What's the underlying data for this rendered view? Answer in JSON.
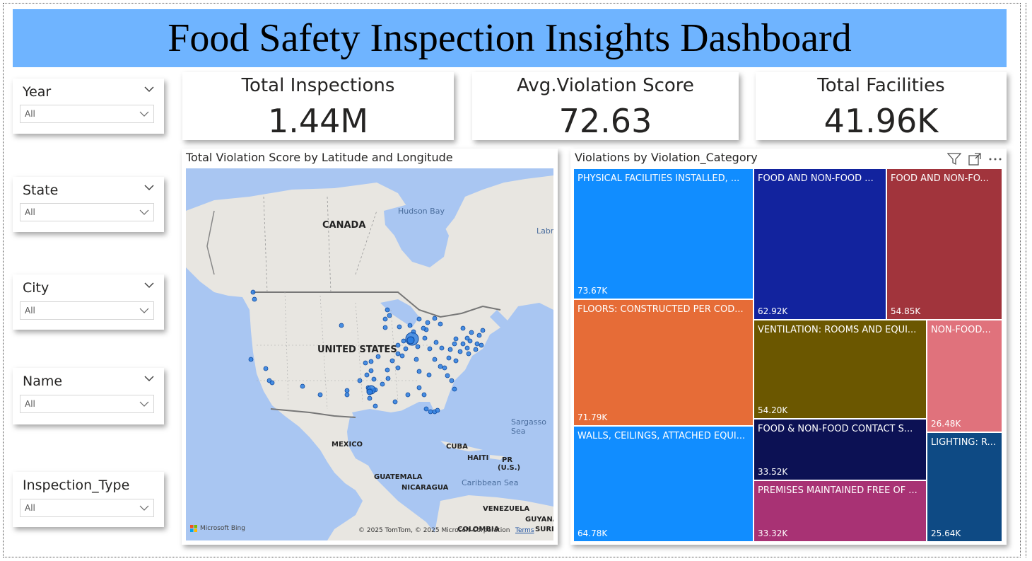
{
  "title": "Food Safety Inspection Insights Dashboard",
  "slicers": [
    {
      "label": "Year",
      "value": "All"
    },
    {
      "label": "State",
      "value": "All"
    },
    {
      "label": "City",
      "value": "All"
    },
    {
      "label": "Name",
      "value": "All"
    },
    {
      "label": "Inspection_Type",
      "value": "All"
    }
  ],
  "kpis": [
    {
      "label": "Total Inspections",
      "value": "1.44M"
    },
    {
      "label": "Avg.Violation Score",
      "value": "72.63"
    },
    {
      "label": "Total Facilities",
      "value": "41.96K"
    }
  ],
  "map": {
    "title": "Total Violation Score by Latitude and Longitude",
    "labels": {
      "canada": "CANADA",
      "us": "UNITED STATES",
      "mexico": "MEXICO",
      "cuba": "CUBA",
      "haiti": "HAITI",
      "pr": "PR",
      "pr2": "(U.S.)",
      "guatemala": "GUATEMALA",
      "nicaragua": "NICARAGUA",
      "venezuela": "VENEZUELA",
      "colombia": "COLOMBIA",
      "guyana": "GUYANA",
      "surin": "SURIN",
      "hudson": "Hudson Bay",
      "labra": "Labra",
      "sargasso": "Sargasso Sea",
      "caribbean": "Caribbean Sea"
    },
    "credit": "© 2025 TomTom, © 2025 Microsoft Corporation",
    "terms": "Terms",
    "bing": "Microsoft Bing",
    "water_color": "#a9c6f2",
    "land_color": "#e8e6e1",
    "bubble_color": "#2a7de1"
  },
  "treemap": {
    "title": "Violations by Violation_Category",
    "cells": [
      {
        "label": "PHYSICAL FACILITIES INSTALLED, ...",
        "value": "73.67K",
        "color": "#118dff"
      },
      {
        "label": "FLOORS: CONSTRUCTED PER COD...",
        "value": "71.79K",
        "color": "#e66c37"
      },
      {
        "label": "WALLS, CEILINGS, ATTACHED EQUI...",
        "value": "64.78K",
        "color": "#118dff"
      },
      {
        "label": "FOOD AND NON-FOOD ...",
        "value": "62.92K",
        "color": "#12239e"
      },
      {
        "label": "FOOD AND NON-FO...",
        "value": "54.85K",
        "color": "#a1343c"
      },
      {
        "label": "VENTILATION: ROOMS AND EQUI...",
        "value": "54.20K",
        "color": "#6b5700"
      },
      {
        "label": "NON-FOOD...",
        "value": "26.48K",
        "color": "#e0727c"
      },
      {
        "label": "FOOD & NON-FOOD CONTACT S...",
        "value": "33.52K",
        "color": "#0c1154"
      },
      {
        "label": "PREMISES MAINTAINED FREE OF ...",
        "value": "33.32K",
        "color": "#a83274"
      },
      {
        "label": "LIGHTING: R...",
        "value": "25.64K",
        "color": "#0e4a84"
      }
    ]
  }
}
